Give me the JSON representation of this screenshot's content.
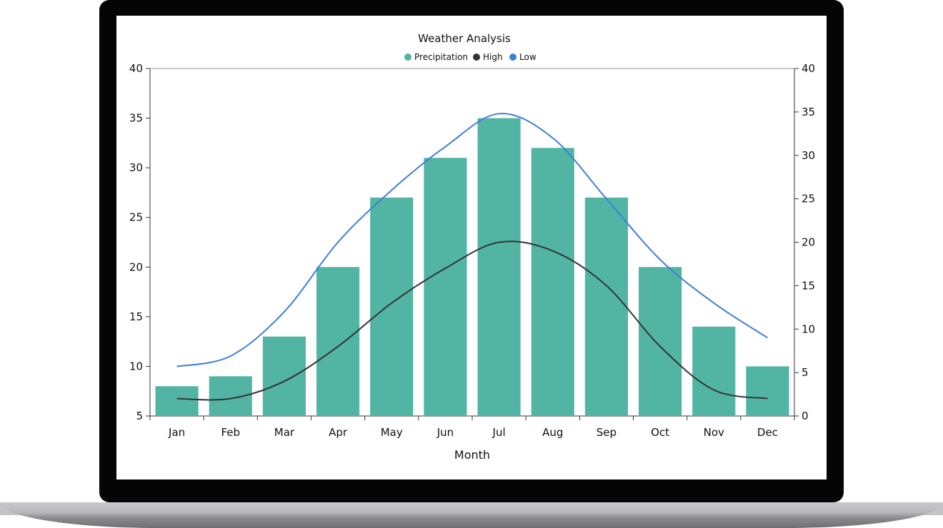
{
  "chart_data": {
    "type": "bar",
    "title": "Weather Analysis",
    "xlabel": "Month",
    "ylabel": "",
    "categories": [
      "Jan",
      "Feb",
      "Mar",
      "Apr",
      "May",
      "Jun",
      "Jul",
      "Aug",
      "Sep",
      "Oct",
      "Nov",
      "Dec"
    ],
    "series": [
      {
        "name": "Precipitation",
        "type": "bar",
        "axis": "left",
        "color": "#52b5a3",
        "values": [
          8,
          9,
          13,
          20,
          27,
          31,
          35,
          32,
          27,
          20,
          14,
          10
        ]
      },
      {
        "name": "High",
        "type": "spline",
        "axis": "right",
        "color": "#333333",
        "values": [
          2,
          2,
          4,
          8,
          13,
          17,
          20,
          19,
          15,
          8,
          3,
          2
        ]
      },
      {
        "name": "Low",
        "type": "spline",
        "axis": "right",
        "color": "#3e7fd6",
        "values": [
          5.7,
          6.9,
          12,
          20,
          26,
          31,
          34.8,
          32,
          25,
          18,
          13,
          9
        ]
      }
    ],
    "y_left": {
      "min": 5,
      "max": 40,
      "ticks": [
        5,
        10,
        15,
        20,
        25,
        30,
        35,
        40
      ]
    },
    "y_right": {
      "min": 0,
      "max": 40,
      "ticks": [
        0,
        5,
        10,
        15,
        20,
        25,
        30,
        35,
        40
      ]
    },
    "legend_position": "top-center",
    "grid": false
  }
}
